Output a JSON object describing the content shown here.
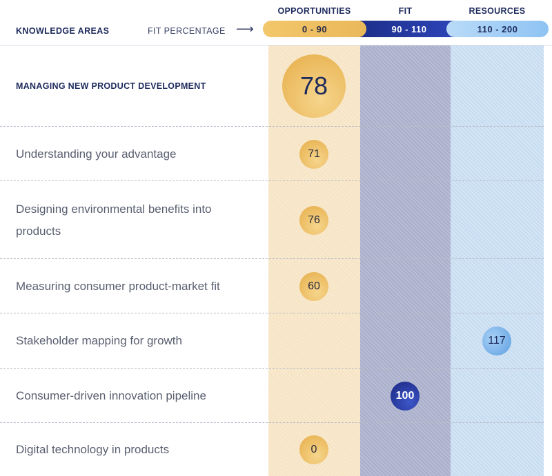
{
  "header": {
    "knowledge_areas": "KNOWLEDGE AREAS",
    "fit_percentage": "FIT PERCENTAGE",
    "arrow": "⟶",
    "columns": [
      {
        "title": "OPPORTUNITIES",
        "range": "0 - 90",
        "color": "#e9b85a"
      },
      {
        "title": "FIT",
        "range": "90 - 110",
        "color": "#1d2f8a"
      },
      {
        "title": "RESOURCES",
        "range": "110 - 200",
        "color": "#8fc3f3"
      }
    ]
  },
  "chart_data": {
    "type": "scatter",
    "categories": [
      "OPPORTUNITIES",
      "FIT",
      "RESOURCES"
    ],
    "rows": [
      {
        "label": "MANAGING NEW PRODUCT DEVELOPMENT",
        "value": 78,
        "category": "OPPORTUNITIES",
        "summary": true
      },
      {
        "label": "Understanding your advantage",
        "value": 71,
        "category": "OPPORTUNITIES"
      },
      {
        "label": "Designing environmental benefits into products",
        "value": 76,
        "category": "OPPORTUNITIES"
      },
      {
        "label": "Measuring consumer product-market fit",
        "value": 60,
        "category": "OPPORTUNITIES"
      },
      {
        "label": "Stakeholder mapping for growth",
        "value": 117,
        "category": "RESOURCES"
      },
      {
        "label": "Consumer-driven innovation pipeline",
        "value": 100,
        "category": "FIT"
      },
      {
        "label": "Digital technology in products",
        "value": 0,
        "category": "OPPORTUNITIES"
      }
    ]
  }
}
